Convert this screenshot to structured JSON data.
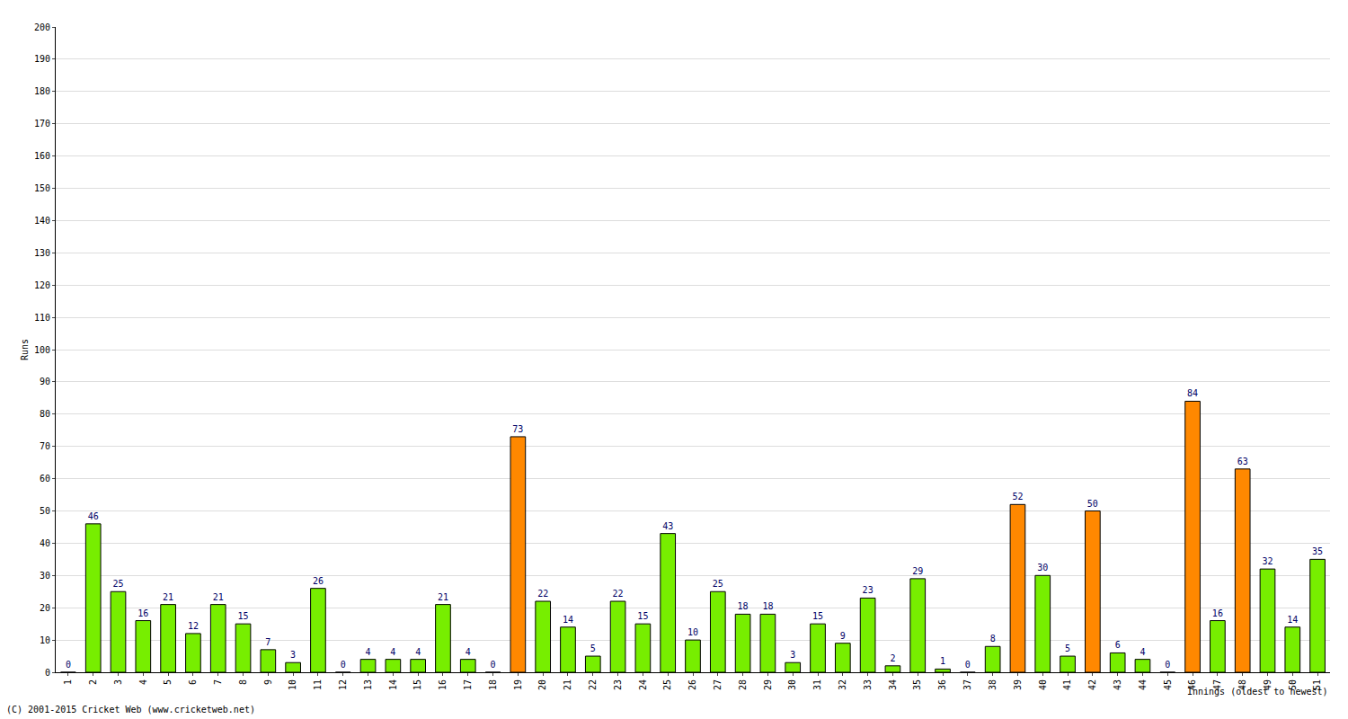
{
  "chart_data": {
    "type": "bar",
    "x_label": "Innings (oldest to newest)",
    "y_label": "Runs",
    "annotations": [
      "(C) 2001-2015 Cricket Web (www.cricketweb.net)"
    ],
    "categories": [
      "1",
      "2",
      "3",
      "4",
      "5",
      "6",
      "7",
      "8",
      "9",
      "10",
      "11",
      "12",
      "13",
      "14",
      "15",
      "16",
      "17",
      "18",
      "19",
      "20",
      "21",
      "22",
      "23",
      "24",
      "25",
      "26",
      "27",
      "28",
      "29",
      "30",
      "31",
      "32",
      "33",
      "34",
      "35",
      "36",
      "37",
      "38",
      "39",
      "40",
      "41",
      "42",
      "43",
      "44",
      "45",
      "46",
      "47",
      "48",
      "49",
      "50",
      "51"
    ],
    "values": [
      0,
      46,
      25,
      16,
      21,
      12,
      21,
      15,
      7,
      3,
      26,
      0,
      4,
      4,
      4,
      21,
      4,
      0,
      73,
      22,
      14,
      5,
      22,
      15,
      43,
      10,
      25,
      18,
      18,
      3,
      15,
      9,
      23,
      2,
      29,
      1,
      0,
      8,
      52,
      30,
      5,
      50,
      6,
      4,
      0,
      84,
      16,
      63,
      32,
      14,
      35
    ],
    "colors": [
      "#77ee00",
      "#77ee00",
      "#77ee00",
      "#77ee00",
      "#77ee00",
      "#77ee00",
      "#77ee00",
      "#77ee00",
      "#77ee00",
      "#77ee00",
      "#77ee00",
      "#77ee00",
      "#77ee00",
      "#77ee00",
      "#77ee00",
      "#77ee00",
      "#77ee00",
      "#77ee00",
      "#ff8800",
      "#77ee00",
      "#77ee00",
      "#77ee00",
      "#77ee00",
      "#77ee00",
      "#77ee00",
      "#77ee00",
      "#77ee00",
      "#77ee00",
      "#77ee00",
      "#77ee00",
      "#77ee00",
      "#77ee00",
      "#77ee00",
      "#77ee00",
      "#77ee00",
      "#77ee00",
      "#77ee00",
      "#77ee00",
      "#ff8800",
      "#77ee00",
      "#77ee00",
      "#ff8800",
      "#77ee00",
      "#77ee00",
      "#77ee00",
      "#ff8800",
      "#77ee00",
      "#ff8800",
      "#77ee00",
      "#77ee00",
      "#77ee00"
    ],
    "ylim": [
      0,
      200
    ],
    "yticks": [
      0,
      10,
      20,
      30,
      40,
      50,
      60,
      70,
      80,
      90,
      100,
      110,
      120,
      130,
      140,
      150,
      160,
      170,
      180,
      190,
      200
    ],
    "grid": true,
    "data_labels": true
  }
}
